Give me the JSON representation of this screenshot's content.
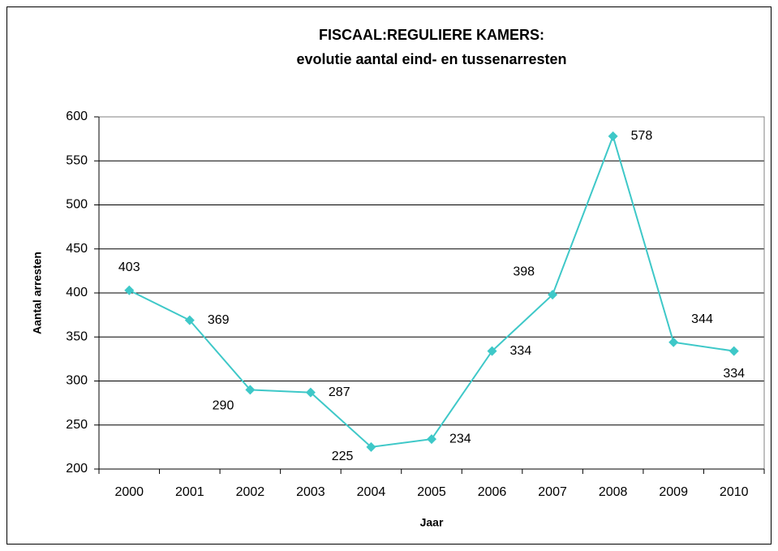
{
  "chart_data": {
    "type": "line",
    "title": "FISCAAL:REGULIERE KAMERS:",
    "subtitle": "evolutie aantal eind- en tussenarresten",
    "x_label": "Jaar",
    "y_label": "Aantal arresten",
    "categories": [
      "2000",
      "2001",
      "2002",
      "2003",
      "2004",
      "2005",
      "2006",
      "2007",
      "2008",
      "2009",
      "2010"
    ],
    "values": [
      403,
      369,
      290,
      287,
      225,
      234,
      334,
      398,
      578,
      344,
      334
    ],
    "color": "#3ec8c8",
    "ylim": [
      200,
      600
    ],
    "yticks": [
      200,
      250,
      300,
      350,
      400,
      450,
      500,
      550,
      600
    ],
    "grid": true
  }
}
